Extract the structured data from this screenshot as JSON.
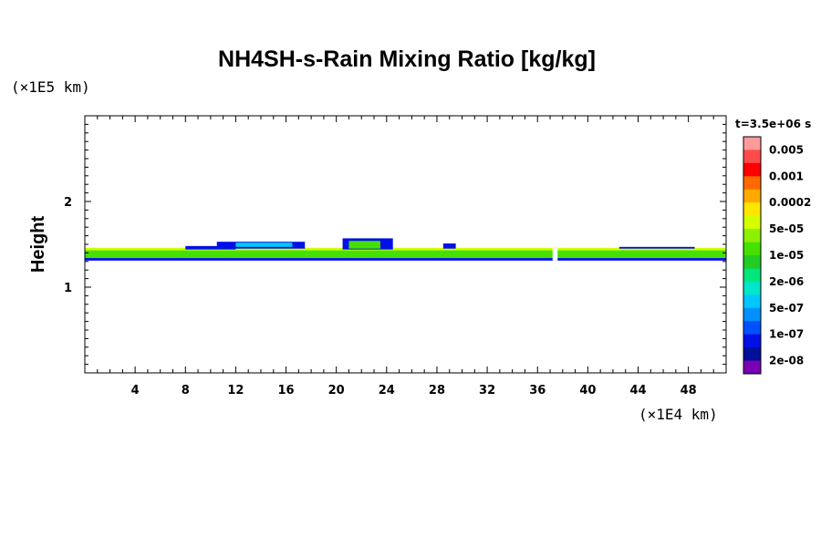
{
  "chart_data": {
    "type": "heatmap",
    "title": "NH4SH-s-Rain Mixing Ratio [kg/kg]",
    "ylabel": "Height",
    "y_scale_note": "(×1E5 km)",
    "x_scale_note": "(×1E4 km)",
    "time_label": "t=3.5e+06 s",
    "xlim": [
      0,
      51
    ],
    "ylim": [
      0,
      3
    ],
    "x_ticks": [
      4,
      8,
      12,
      16,
      20,
      24,
      28,
      32,
      36,
      40,
      44,
      48
    ],
    "y_ticks": [
      1,
      2
    ],
    "colorbar": {
      "labels": [
        "0.005",
        "0.001",
        "0.0002",
        "5e-05",
        "1e-05",
        "2e-06",
        "5e-07",
        "1e-07",
        "2e-08"
      ],
      "colors": [
        "#ff9a9a",
        "#ff4a4a",
        "#ff0000",
        "#ff6a00",
        "#ffaa00",
        "#ffe600",
        "#d4ff00",
        "#8cf000",
        "#44e000",
        "#22cc22",
        "#00e67a",
        "#00e6c8",
        "#00c8ff",
        "#0090ff",
        "#0050ff",
        "#0010e6",
        "#00109a",
        "#7a00b4"
      ]
    },
    "layers": [
      {
        "name": "band-core",
        "x": [
          0,
          51
        ],
        "y": [
          1.32,
          1.45
        ],
        "color": "#44e000"
      },
      {
        "name": "band-upper-edge",
        "x": [
          0,
          51
        ],
        "y": [
          1.43,
          1.46
        ],
        "color": "#d4ff00"
      },
      {
        "name": "band-lower-edge",
        "x": [
          0,
          51
        ],
        "y": [
          1.31,
          1.34
        ],
        "color": "#0010e6"
      },
      {
        "name": "cloud-top-1",
        "x": [
          8,
          12
        ],
        "y": [
          1.44,
          1.48
        ],
        "color": "#0010e6"
      },
      {
        "name": "cloud-top-2",
        "x": [
          10.5,
          17.5
        ],
        "y": [
          1.45,
          1.53
        ],
        "color": "#0010e6"
      },
      {
        "name": "cloud-top-2b",
        "x": [
          12,
          16.5
        ],
        "y": [
          1.47,
          1.52
        ],
        "color": "#00c8ff"
      },
      {
        "name": "cloud-top-3",
        "x": [
          20.5,
          24.5
        ],
        "y": [
          1.44,
          1.57
        ],
        "color": "#0010e6"
      },
      {
        "name": "cloud-top-3b",
        "x": [
          21,
          23.5
        ],
        "y": [
          1.45,
          1.54
        ],
        "color": "#44e000"
      },
      {
        "name": "cloud-top-4",
        "x": [
          28.5,
          29.5
        ],
        "y": [
          1.45,
          1.51
        ],
        "color": "#0010e6"
      },
      {
        "name": "cloud-top-5",
        "x": [
          42.5,
          48.5
        ],
        "y": [
          1.45,
          1.47
        ],
        "color": "#0010e6"
      },
      {
        "name": "gap-1",
        "x": [
          37.2,
          37.6
        ],
        "y": [
          1.31,
          1.46
        ],
        "color": "#ffffff"
      }
    ]
  }
}
